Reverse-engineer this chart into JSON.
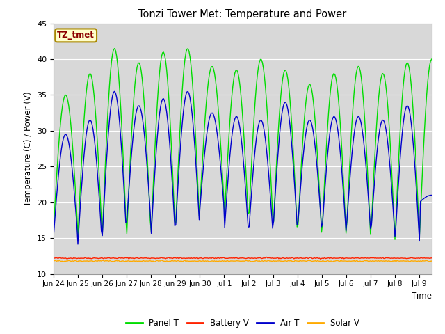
{
  "title": "Tonzi Tower Met: Temperature and Power",
  "xlabel": "Time",
  "ylabel": "Temperature (C) / Power (V)",
  "ylim": [
    10,
    45
  ],
  "yticks": [
    10,
    15,
    20,
    25,
    30,
    35,
    40,
    45
  ],
  "annotation_text": "TZ_tmet",
  "annotation_color": "#8B0000",
  "annotation_bg": "#FFFFCC",
  "annotation_border": "#AA8800",
  "panel_color": "#00DD00",
  "battery_color": "#FF2200",
  "air_color": "#0000CC",
  "solar_color": "#FFAA00",
  "bg_color": "#D8D8D8",
  "grid_color": "#FFFFFF",
  "legend_labels": [
    "Panel T",
    "Battery V",
    "Air T",
    "Solar V"
  ],
  "x_tick_labels": [
    "Jun 24",
    "Jun 25",
    "Jun 26",
    "Jun 27",
    "Jun 28",
    "Jun 29",
    "Jun 30",
    "Jul 1",
    "Jul 2",
    "Jul 3",
    "Jul 4",
    "Jul 5",
    "Jul 6",
    "Jul 7",
    "Jul 8",
    "Jul 9"
  ],
  "x_tick_positions": [
    0,
    1,
    2,
    3,
    4,
    5,
    6,
    7,
    8,
    9,
    10,
    11,
    12,
    13,
    14,
    15
  ],
  "panel_peaks": [
    35,
    38,
    41.5,
    39.5,
    41,
    41.5,
    39,
    38.5,
    40,
    38.5,
    36.5,
    38,
    39,
    38,
    39.5,
    40
  ],
  "panel_mins": [
    16,
    15,
    15,
    15,
    15,
    16,
    19.5,
    17,
    17,
    15.5,
    15,
    15,
    15,
    14.5,
    15,
    15
  ],
  "air_peaks": [
    29.5,
    31.5,
    35.5,
    33.5,
    34.5,
    35.5,
    32.5,
    32,
    31.5,
    34,
    31.5,
    32,
    32,
    31.5,
    33.5,
    21
  ],
  "air_mins": [
    15,
    14,
    15,
    17,
    15,
    16,
    19,
    15.5,
    15.5,
    16,
    16,
    15.5,
    16,
    15,
    14.5,
    20
  ],
  "battery_val": 12.2,
  "solar_val": 11.8,
  "num_days": 15.5
}
